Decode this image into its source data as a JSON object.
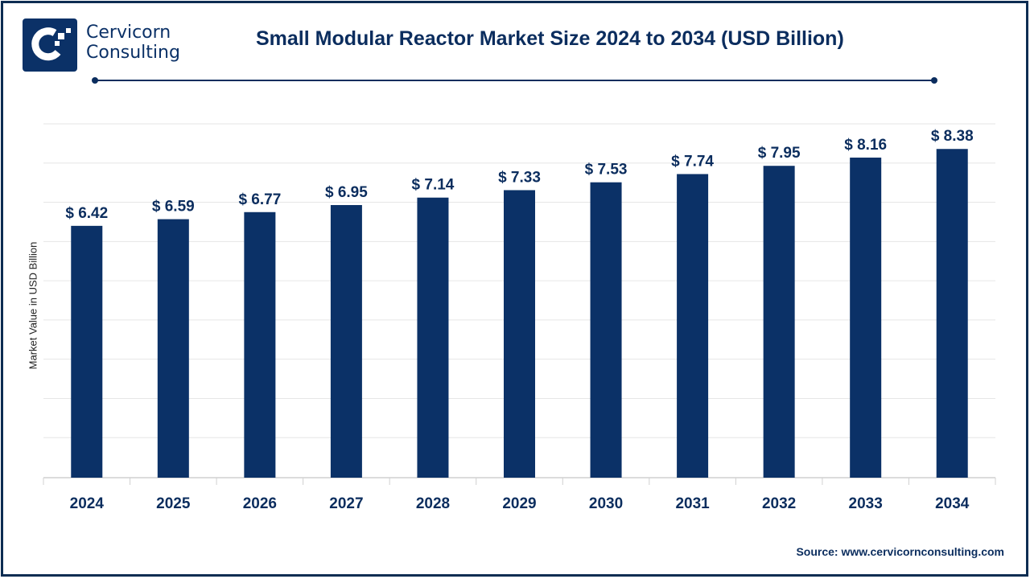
{
  "brand": {
    "line1": "Cervicorn",
    "line2": "Consulting"
  },
  "source": "Source: www.cervicornconsulting.com",
  "chart_data": {
    "type": "bar",
    "title": "Small Modular Reactor Market Size 2024 to 2034 (USD Billion)",
    "xlabel": "",
    "ylabel": "Market Value in USD Billion",
    "categories": [
      "2024",
      "2025",
      "2026",
      "2027",
      "2028",
      "2029",
      "2030",
      "2031",
      "2032",
      "2033",
      "2034"
    ],
    "values": [
      6.42,
      6.59,
      6.77,
      6.95,
      7.14,
      7.33,
      7.53,
      7.74,
      7.95,
      8.16,
      8.38
    ],
    "data_labels": [
      "$ 6.42",
      "$ 6.59",
      "$ 6.77",
      "$ 6.95",
      "$ 7.14",
      "$ 7.33",
      "$ 7.53",
      "$ 7.74",
      "$ 7.95",
      "$ 8.16",
      "$ 8.38"
    ],
    "ylim": [
      0,
      9
    ],
    "grid": true,
    "bar_color": "#0b3167"
  }
}
